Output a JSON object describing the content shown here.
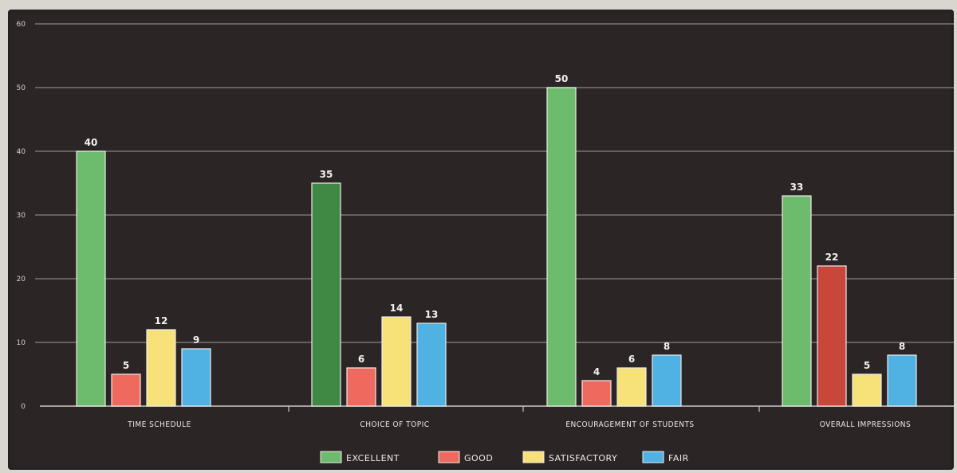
{
  "chart_data": {
    "type": "bar",
    "categories": [
      "TIME SCHEDULE",
      "CHOICE OF TOPIC",
      "ENCOURAGEMENT OF STUDENTS",
      "OVERALL IMPRESSIONS"
    ],
    "series": [
      {
        "name": "EXCELLENT",
        "values": [
          40,
          35,
          50,
          33
        ]
      },
      {
        "name": "GOOD",
        "values": [
          5,
          6,
          4,
          22
        ]
      },
      {
        "name": "SATISFACTORY",
        "values": [
          12,
          14,
          6,
          5
        ]
      },
      {
        "name": "FAIR",
        "values": [
          9,
          13,
          8,
          8
        ]
      }
    ],
    "ylim": [
      0,
      60
    ],
    "yticks": [
      "0",
      "10",
      "20",
      "30",
      "40",
      "50",
      "60"
    ],
    "grid": true,
    "legend": "bottom-center",
    "colors": {
      "EXCELLENT": "#6dbb6d",
      "GOOD": "#ef6a5e",
      "SATISFACTORY": "#f7e27a",
      "FAIR": "#4fb2e3"
    }
  }
}
